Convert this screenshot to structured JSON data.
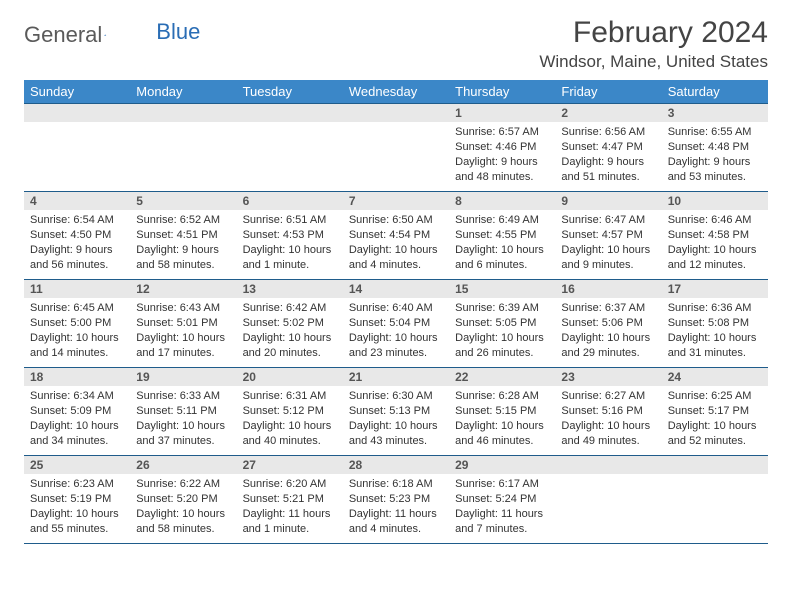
{
  "brand": {
    "part1": "General",
    "part2": "Blue"
  },
  "title": "February 2024",
  "location": "Windsor, Maine, United States",
  "dayNames": [
    "Sunday",
    "Monday",
    "Tuesday",
    "Wednesday",
    "Thursday",
    "Friday",
    "Saturday"
  ],
  "colors": {
    "header_bg": "#3b87c8",
    "header_text": "#ffffff",
    "border": "#1f5c8b",
    "datebar_bg": "#e8e8e8",
    "text": "#333333"
  },
  "weeks": [
    [
      null,
      null,
      null,
      null,
      {
        "d": "1",
        "sr": "6:57 AM",
        "ss": "4:46 PM",
        "dl": "9 hours and 48 minutes."
      },
      {
        "d": "2",
        "sr": "6:56 AM",
        "ss": "4:47 PM",
        "dl": "9 hours and 51 minutes."
      },
      {
        "d": "3",
        "sr": "6:55 AM",
        "ss": "4:48 PM",
        "dl": "9 hours and 53 minutes."
      }
    ],
    [
      {
        "d": "4",
        "sr": "6:54 AM",
        "ss": "4:50 PM",
        "dl": "9 hours and 56 minutes."
      },
      {
        "d": "5",
        "sr": "6:52 AM",
        "ss": "4:51 PM",
        "dl": "9 hours and 58 minutes."
      },
      {
        "d": "6",
        "sr": "6:51 AM",
        "ss": "4:53 PM",
        "dl": "10 hours and 1 minute."
      },
      {
        "d": "7",
        "sr": "6:50 AM",
        "ss": "4:54 PM",
        "dl": "10 hours and 4 minutes."
      },
      {
        "d": "8",
        "sr": "6:49 AM",
        "ss": "4:55 PM",
        "dl": "10 hours and 6 minutes."
      },
      {
        "d": "9",
        "sr": "6:47 AM",
        "ss": "4:57 PM",
        "dl": "10 hours and 9 minutes."
      },
      {
        "d": "10",
        "sr": "6:46 AM",
        "ss": "4:58 PM",
        "dl": "10 hours and 12 minutes."
      }
    ],
    [
      {
        "d": "11",
        "sr": "6:45 AM",
        "ss": "5:00 PM",
        "dl": "10 hours and 14 minutes."
      },
      {
        "d": "12",
        "sr": "6:43 AM",
        "ss": "5:01 PM",
        "dl": "10 hours and 17 minutes."
      },
      {
        "d": "13",
        "sr": "6:42 AM",
        "ss": "5:02 PM",
        "dl": "10 hours and 20 minutes."
      },
      {
        "d": "14",
        "sr": "6:40 AM",
        "ss": "5:04 PM",
        "dl": "10 hours and 23 minutes."
      },
      {
        "d": "15",
        "sr": "6:39 AM",
        "ss": "5:05 PM",
        "dl": "10 hours and 26 minutes."
      },
      {
        "d": "16",
        "sr": "6:37 AM",
        "ss": "5:06 PM",
        "dl": "10 hours and 29 minutes."
      },
      {
        "d": "17",
        "sr": "6:36 AM",
        "ss": "5:08 PM",
        "dl": "10 hours and 31 minutes."
      }
    ],
    [
      {
        "d": "18",
        "sr": "6:34 AM",
        "ss": "5:09 PM",
        "dl": "10 hours and 34 minutes."
      },
      {
        "d": "19",
        "sr": "6:33 AM",
        "ss": "5:11 PM",
        "dl": "10 hours and 37 minutes."
      },
      {
        "d": "20",
        "sr": "6:31 AM",
        "ss": "5:12 PM",
        "dl": "10 hours and 40 minutes."
      },
      {
        "d": "21",
        "sr": "6:30 AM",
        "ss": "5:13 PM",
        "dl": "10 hours and 43 minutes."
      },
      {
        "d": "22",
        "sr": "6:28 AM",
        "ss": "5:15 PM",
        "dl": "10 hours and 46 minutes."
      },
      {
        "d": "23",
        "sr": "6:27 AM",
        "ss": "5:16 PM",
        "dl": "10 hours and 49 minutes."
      },
      {
        "d": "24",
        "sr": "6:25 AM",
        "ss": "5:17 PM",
        "dl": "10 hours and 52 minutes."
      }
    ],
    [
      {
        "d": "25",
        "sr": "6:23 AM",
        "ss": "5:19 PM",
        "dl": "10 hours and 55 minutes."
      },
      {
        "d": "26",
        "sr": "6:22 AM",
        "ss": "5:20 PM",
        "dl": "10 hours and 58 minutes."
      },
      {
        "d": "27",
        "sr": "6:20 AM",
        "ss": "5:21 PM",
        "dl": "11 hours and 1 minute."
      },
      {
        "d": "28",
        "sr": "6:18 AM",
        "ss": "5:23 PM",
        "dl": "11 hours and 4 minutes."
      },
      {
        "d": "29",
        "sr": "6:17 AM",
        "ss": "5:24 PM",
        "dl": "11 hours and 7 minutes."
      },
      null,
      null
    ]
  ],
  "labels": {
    "sunrise": "Sunrise: ",
    "sunset": "Sunset: ",
    "daylight": "Daylight: "
  }
}
